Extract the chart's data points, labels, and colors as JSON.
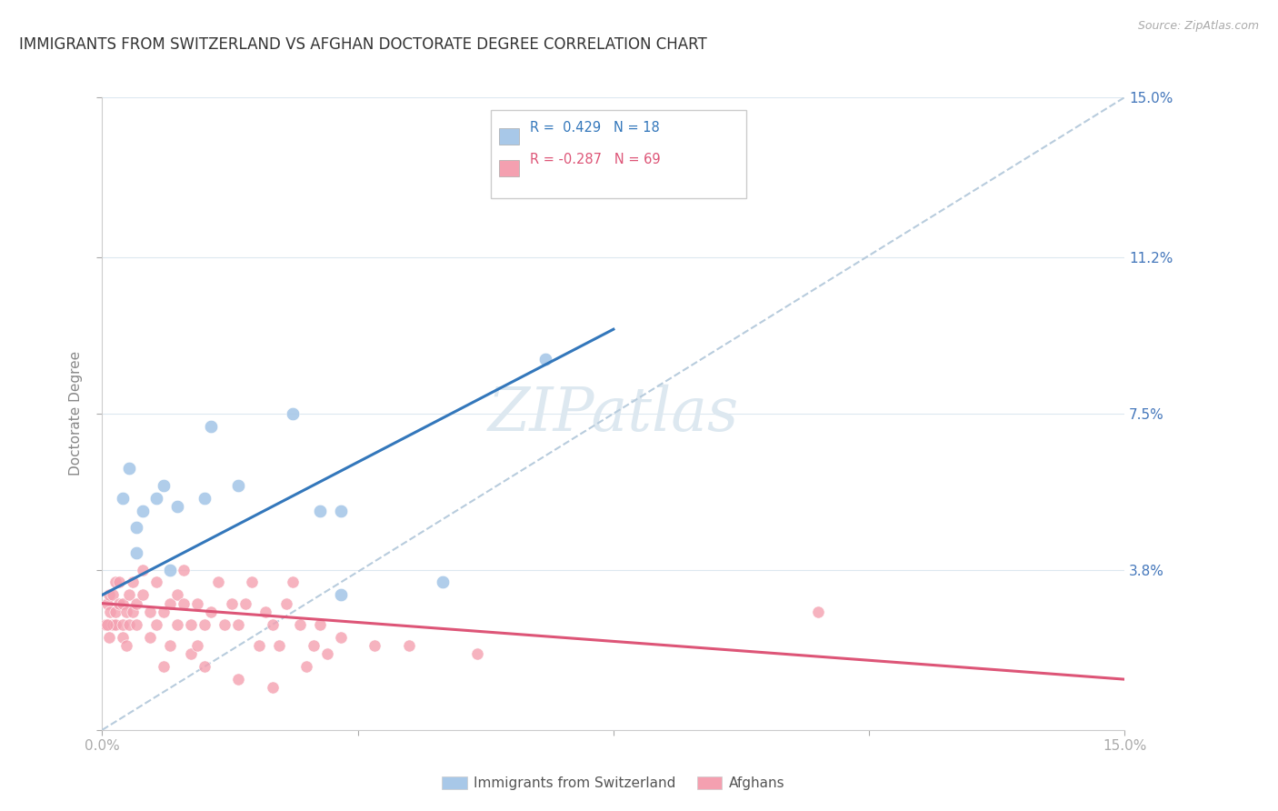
{
  "title": "IMMIGRANTS FROM SWITZERLAND VS AFGHAN DOCTORATE DEGREE CORRELATION CHART",
  "source": "Source: ZipAtlas.com",
  "ylabel": "Doctorate Degree",
  "xlim": [
    0,
    15
  ],
  "ylim": [
    0,
    15
  ],
  "yticks": [
    0,
    3.8,
    7.5,
    11.2,
    15.0
  ],
  "ytick_labels": [
    "",
    "3.8%",
    "7.5%",
    "11.2%",
    "15.0%"
  ],
  "legend_blue_r": "R =  0.429",
  "legend_blue_n": "N = 18",
  "legend_pink_r": "R = -0.287",
  "legend_pink_n": "N = 69",
  "blue_color": "#a8c8e8",
  "pink_color": "#f4a0b0",
  "blue_line_color": "#3377bb",
  "pink_line_color": "#dd5577",
  "dashed_line_color": "#b8ccdd",
  "watermark_color": "#dde8f0",
  "background_color": "#ffffff",
  "grid_color": "#dde8f0",
  "title_color": "#333333",
  "right_axis_color": "#4477bb",
  "blue_scatter_x": [
    0.3,
    0.4,
    0.5,
    0.5,
    0.6,
    0.8,
    0.9,
    1.0,
    1.1,
    1.5,
    1.6,
    2.0,
    2.8,
    3.2,
    3.5,
    3.5,
    5.0,
    6.5
  ],
  "blue_scatter_y": [
    5.5,
    6.2,
    4.2,
    4.8,
    5.2,
    5.5,
    5.8,
    3.8,
    5.3,
    5.5,
    7.2,
    5.8,
    7.5,
    5.2,
    3.2,
    5.2,
    3.5,
    8.8
  ],
  "pink_scatter_x": [
    0.05,
    0.08,
    0.1,
    0.1,
    0.12,
    0.15,
    0.15,
    0.2,
    0.2,
    0.2,
    0.25,
    0.25,
    0.3,
    0.3,
    0.3,
    0.35,
    0.35,
    0.4,
    0.4,
    0.45,
    0.45,
    0.5,
    0.5,
    0.6,
    0.6,
    0.7,
    0.7,
    0.8,
    0.8,
    0.9,
    0.9,
    1.0,
    1.0,
    1.1,
    1.1,
    1.2,
    1.2,
    1.3,
    1.3,
    1.4,
    1.4,
    1.5,
    1.5,
    1.6,
    1.7,
    1.8,
    1.9,
    2.0,
    2.0,
    2.1,
    2.2,
    2.3,
    2.4,
    2.5,
    2.5,
    2.6,
    2.7,
    2.8,
    2.9,
    3.0,
    3.1,
    3.2,
    3.3,
    3.5,
    4.0,
    4.5,
    5.5,
    10.5,
    0.07
  ],
  "pink_scatter_y": [
    2.5,
    3.0,
    2.2,
    3.2,
    2.8,
    2.5,
    3.2,
    2.5,
    2.8,
    3.5,
    3.0,
    3.5,
    2.2,
    2.5,
    3.0,
    2.0,
    2.8,
    2.5,
    3.2,
    2.8,
    3.5,
    2.5,
    3.0,
    3.2,
    3.8,
    2.2,
    2.8,
    2.5,
    3.5,
    1.5,
    2.8,
    2.0,
    3.0,
    2.5,
    3.2,
    3.0,
    3.8,
    1.8,
    2.5,
    2.0,
    3.0,
    1.5,
    2.5,
    2.8,
    3.5,
    2.5,
    3.0,
    1.2,
    2.5,
    3.0,
    3.5,
    2.0,
    2.8,
    1.0,
    2.5,
    2.0,
    3.0,
    3.5,
    2.5,
    1.5,
    2.0,
    2.5,
    1.8,
    2.2,
    2.0,
    2.0,
    1.8,
    2.8,
    2.5
  ],
  "blue_line_x": [
    0,
    7.5
  ],
  "blue_line_y": [
    3.2,
    9.5
  ],
  "pink_line_x": [
    0,
    15
  ],
  "pink_line_y": [
    3.0,
    1.2
  ]
}
